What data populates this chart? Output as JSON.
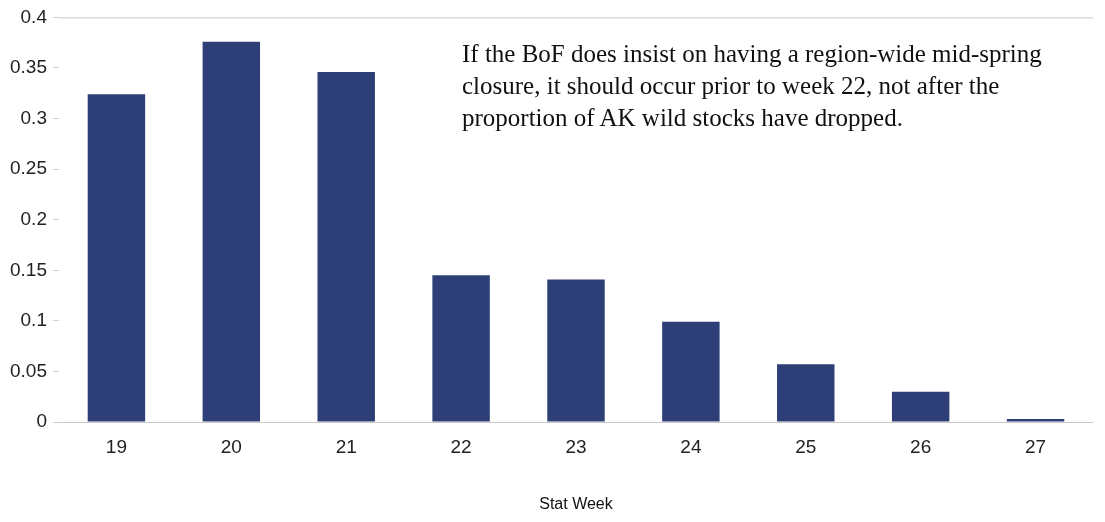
{
  "chart_data": {
    "type": "bar",
    "xlabel": "Stat Week",
    "categories": [
      "19",
      "20",
      "21",
      "22",
      "23",
      "24",
      "25",
      "26",
      "27"
    ],
    "values": [
      0.324,
      0.376,
      0.346,
      0.145,
      0.141,
      0.099,
      0.057,
      0.03,
      0.003
    ],
    "color": "#2e3f78",
    "ylim": [
      0,
      0.4
    ],
    "yticks": [
      0,
      0.05,
      0.1,
      0.15,
      0.2,
      0.25,
      0.3,
      0.35,
      0.4
    ],
    "grid": false,
    "legend": false,
    "annotations": [
      "If the BoF does insist on having a region-wide mid-spring closure, it should occur prior to week 22, not after the proportion of AK wild stocks have dropped."
    ]
  }
}
